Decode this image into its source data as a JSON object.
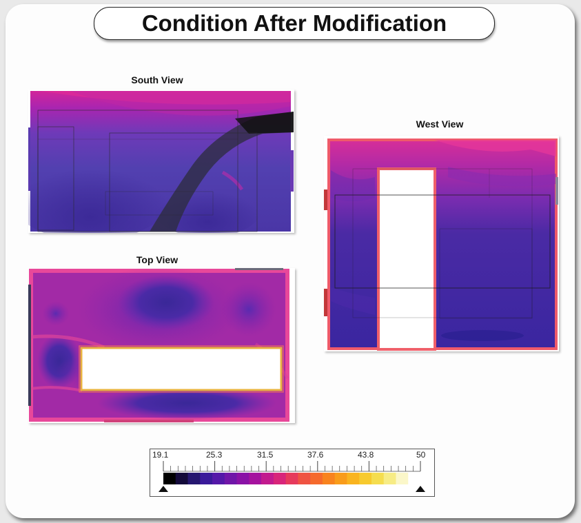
{
  "title": "Condition After Modification",
  "views": {
    "south": "South View",
    "west": "West View",
    "top": "Top View"
  },
  "legend": {
    "tick_labels": [
      "19.1",
      "25.3",
      "31.5",
      "37.6",
      "43.8",
      "50"
    ],
    "colors": [
      "#000000",
      "#140a3a",
      "#261770",
      "#3a1a9a",
      "#5418a8",
      "#7016a8",
      "#8a12a6",
      "#a5139e",
      "#c21a8e",
      "#d8257a",
      "#e63a5c",
      "#ef5342",
      "#f56a2c",
      "#f8831e",
      "#f99c1a",
      "#f9b41f",
      "#f7ca2e",
      "#f5dd4f",
      "#f7ec85",
      "#fbf7c9",
      "#ffffff"
    ]
  }
}
